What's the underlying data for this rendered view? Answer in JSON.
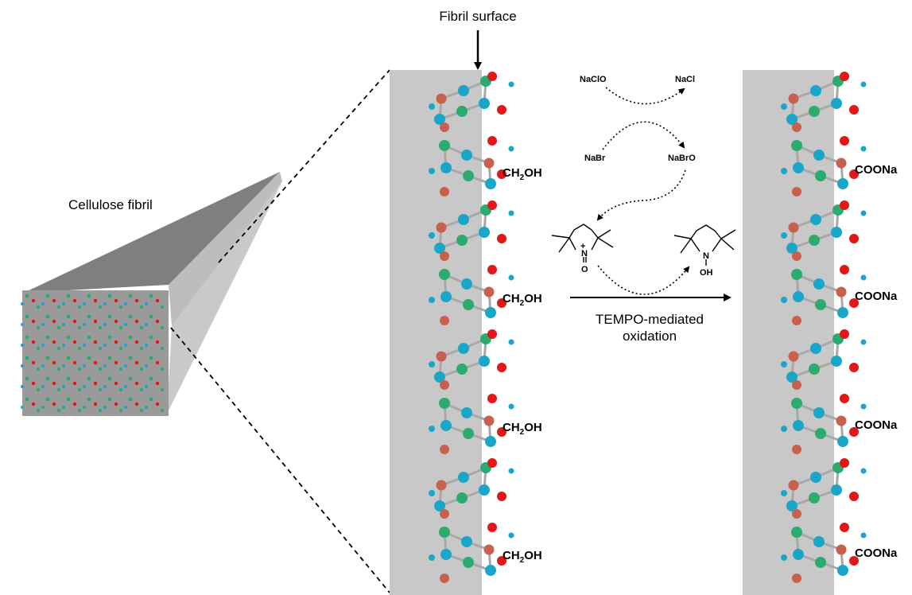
{
  "labels": {
    "fibril_surface": "Fibril surface",
    "cellulose_fibril": "Cellulose fibril",
    "reaction_line1": "TEMPO-mediated",
    "reaction_line2": "oxidation"
  },
  "reagents": {
    "naclo": "NaClO",
    "nacl": "NaCl",
    "nabr": "NaBr",
    "nabro": "NaBrO"
  },
  "tempo_atoms": {
    "n_left": "N",
    "charge_plus": "+",
    "o_left": "O",
    "n_right": "N",
    "oh_right": "OH"
  },
  "group_left": {
    "base": "CH",
    "sub": "2",
    "tail": "OH"
  },
  "group_right": "COONa",
  "colors": {
    "carbon": "#2bab6e",
    "oxygen_ring": "#c8604e",
    "oxygen": "#e01818",
    "hydrogen": "#1aa6c8",
    "surface": "#c8c8c8",
    "fibril_dark": "#7f7f7f"
  }
}
